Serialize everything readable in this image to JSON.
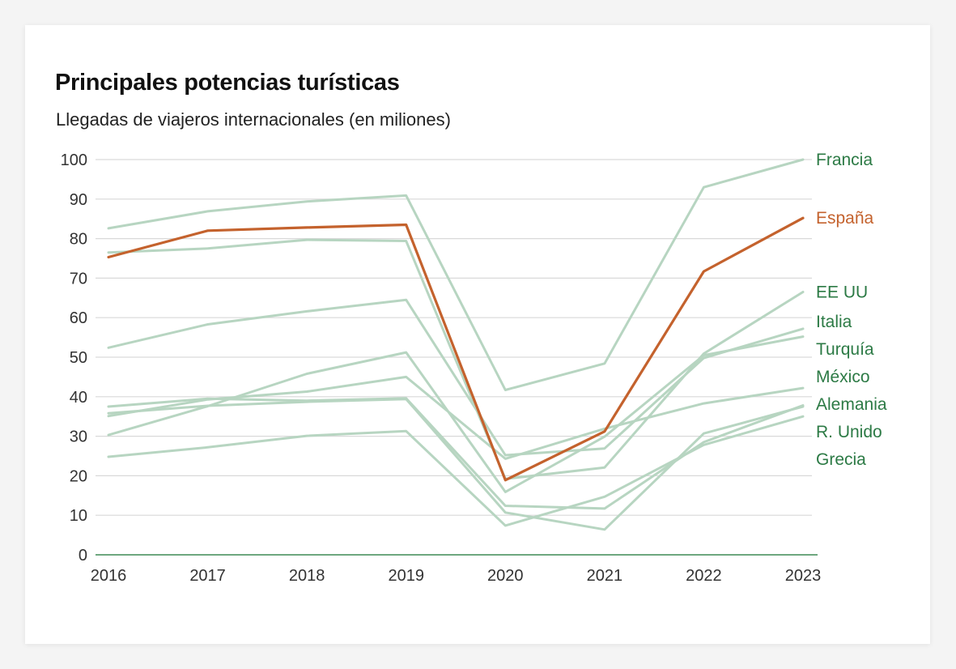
{
  "colors": {
    "background": "#ffffff",
    "grid": "#d9d9d9",
    "baseline": "#3f8a55",
    "series_muted": "#b7d5c1",
    "highlight": "#c4622d",
    "label_green": "#2c7a45"
  },
  "chart_data": {
    "type": "line",
    "title": "Principales potencias turísticas",
    "subtitle": "Llegadas de viajeros internacionales (en miliones)",
    "xlabel": "",
    "ylabel": "",
    "x": [
      "2016",
      "2017",
      "2018",
      "2019",
      "2020",
      "2021",
      "2022",
      "2023"
    ],
    "ylim": [
      0,
      100
    ],
    "yticks": [
      0,
      10,
      20,
      30,
      40,
      50,
      60,
      70,
      80,
      90,
      100
    ],
    "grid": true,
    "legend": "direct labels at right end of lines",
    "series": [
      {
        "name": "Francia",
        "values": [
          82.6,
          86.9,
          89.4,
          90.9,
          41.7,
          48.4,
          93.0,
          100.0
        ],
        "highlight": false
      },
      {
        "name": "España",
        "values": [
          75.3,
          82.0,
          82.8,
          83.5,
          18.9,
          31.2,
          71.7,
          85.2
        ],
        "highlight": true
      },
      {
        "name": "EE UU",
        "values": [
          76.5,
          77.5,
          79.7,
          79.4,
          19.2,
          22.1,
          50.9,
          66.5
        ],
        "highlight": false
      },
      {
        "name": "Italia",
        "values": [
          52.4,
          58.3,
          61.6,
          64.5,
          25.2,
          26.9,
          49.8,
          57.2
        ],
        "highlight": false
      },
      {
        "name": "Turquía",
        "values": [
          30.3,
          37.6,
          45.8,
          51.2,
          15.9,
          29.9,
          50.5,
          55.2
        ],
        "highlight": false
      },
      {
        "name": "México",
        "values": [
          35.1,
          39.3,
          41.3,
          45.0,
          24.3,
          31.9,
          38.3,
          42.2
        ],
        "highlight": false
      },
      {
        "name": "Grecia",
        "values": [
          24.8,
          27.2,
          30.1,
          31.3,
          7.4,
          14.7,
          27.8,
          35.0
        ],
        "highlight": false
      },
      {
        "name": "R. Unido",
        "values": [
          35.8,
          37.7,
          38.7,
          39.4,
          10.7,
          6.4,
          30.7,
          37.5
        ],
        "highlight": false
      },
      {
        "name": "Alemania",
        "values": [
          37.5,
          39.5,
          39.0,
          39.6,
          12.4,
          11.7,
          28.5,
          37.8
        ],
        "highlight": false
      }
    ]
  }
}
